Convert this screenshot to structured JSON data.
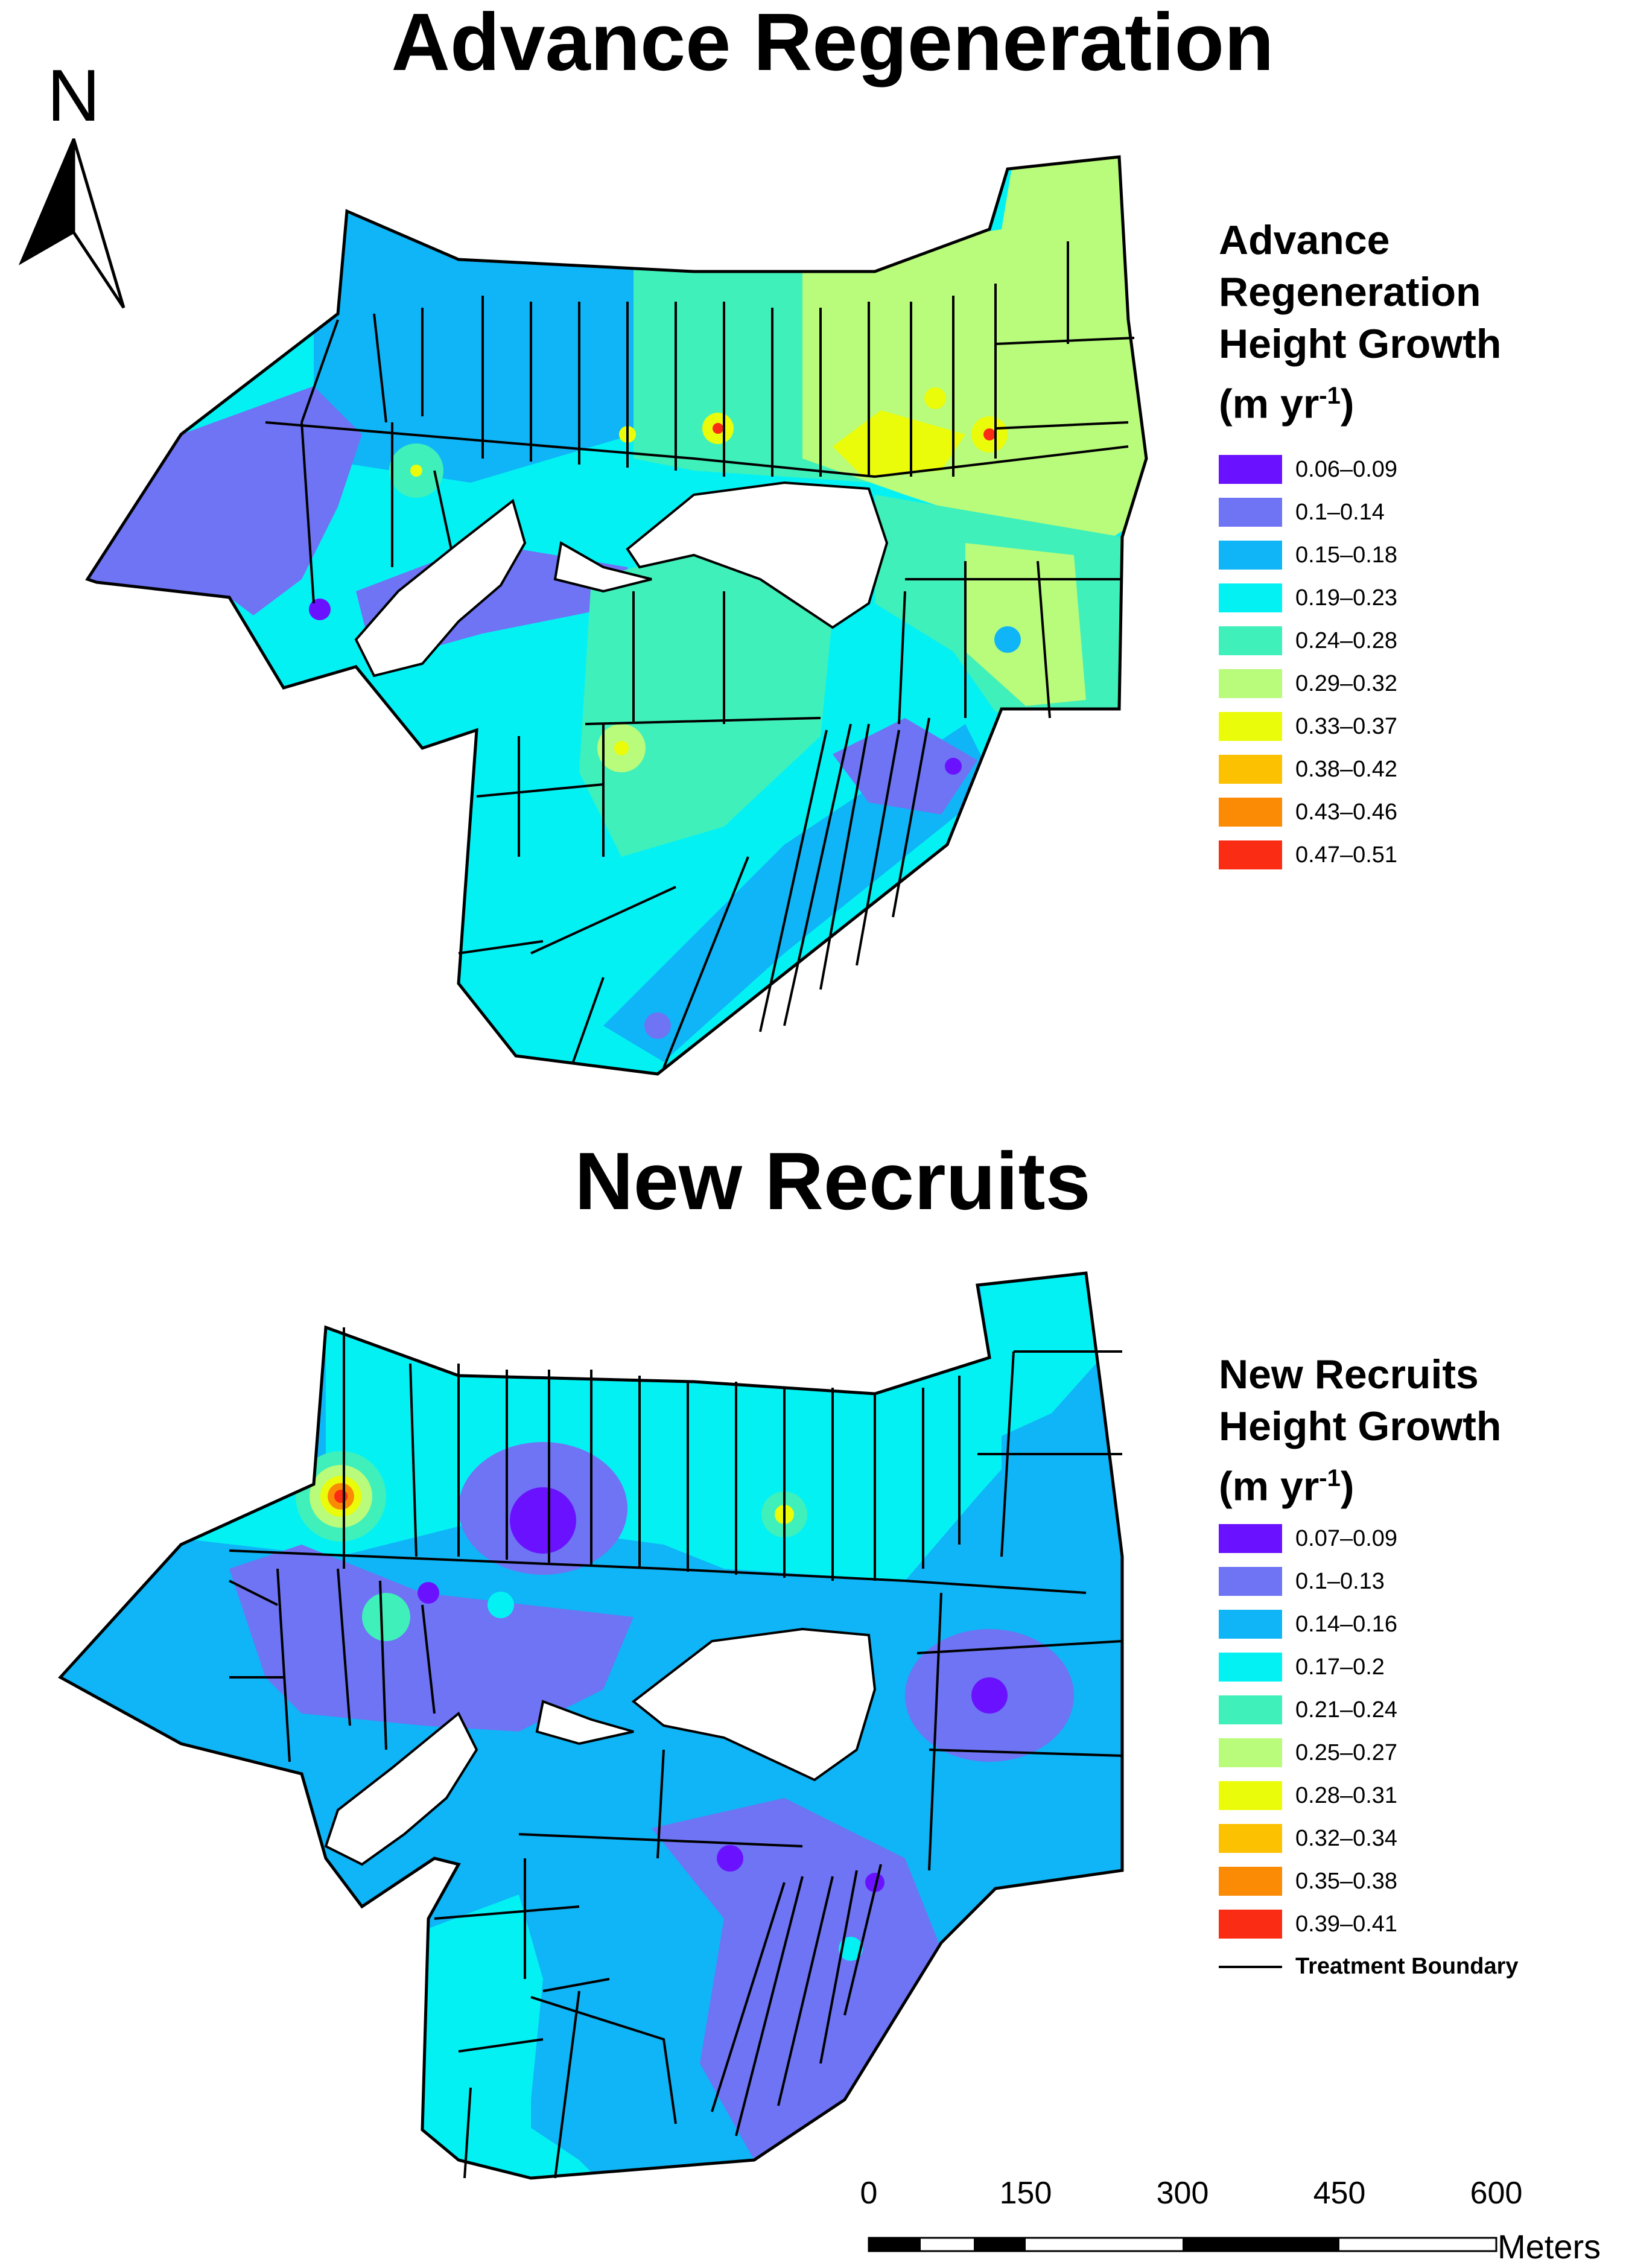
{
  "titles": {
    "top": "Advance Regeneration",
    "bottom": "New Recruits"
  },
  "north_arrow": {
    "label": "N"
  },
  "legend_top": {
    "title_lines": [
      "Advance",
      "Regeneration",
      "Height Growth"
    ],
    "unit_prefix": "(m yr",
    "unit_exp": "-1",
    "unit_suffix": ")",
    "items": [
      {
        "label": "0.06–0.09",
        "color": "#6a12ff"
      },
      {
        "label": "0.1–0.14",
        "color": "#6e74f3"
      },
      {
        "label": "0.15–0.18",
        "color": "#0fb5f6"
      },
      {
        "label": "0.19–0.23",
        "color": "#04f1f4"
      },
      {
        "label": "0.24–0.28",
        "color": "#3ff0ba"
      },
      {
        "label": "0.29–0.32",
        "color": "#b9fb7b"
      },
      {
        "label": "0.33–0.37",
        "color": "#ebfc0a"
      },
      {
        "label": "0.38–0.42",
        "color": "#fcc202"
      },
      {
        "label": "0.43–0.46",
        "color": "#fb8a05"
      },
      {
        "label": "0.47–0.51",
        "color": "#fb2c14"
      }
    ]
  },
  "legend_bottom": {
    "title_lines": [
      "New Recruits",
      "Height Growth"
    ],
    "unit_prefix": "(m yr",
    "unit_exp": "-1",
    "unit_suffix": ")",
    "items": [
      {
        "label": "0.07–0.09",
        "color": "#6a12ff"
      },
      {
        "label": "0.1–0.13",
        "color": "#6e74f3"
      },
      {
        "label": "0.14–0.16",
        "color": "#0fb5f6"
      },
      {
        "label": "0.17–0.2",
        "color": "#04f1f4"
      },
      {
        "label": "0.21–0.24",
        "color": "#3ff0ba"
      },
      {
        "label": "0.25–0.27",
        "color": "#b9fb7b"
      },
      {
        "label": "0.28–0.31",
        "color": "#ebfc0a"
      },
      {
        "label": "0.32–0.34",
        "color": "#fcc202"
      },
      {
        "label": "0.35–0.38",
        "color": "#fb8a05"
      },
      {
        "label": "0.39–0.41",
        "color": "#fb2c14"
      }
    ],
    "boundary_label": "Treatment Boundary"
  },
  "scale_bar": {
    "ticks": [
      "0",
      "150",
      "300",
      "450",
      "600"
    ],
    "units": "Meters"
  },
  "colors": {
    "boundary": "#000000",
    "cyan": "#04f1f4",
    "blue": "#0fb5f6",
    "periwinkle": "#6e74f3",
    "green": "#3ff0ba",
    "lightgreen": "#b9fb7b"
  }
}
